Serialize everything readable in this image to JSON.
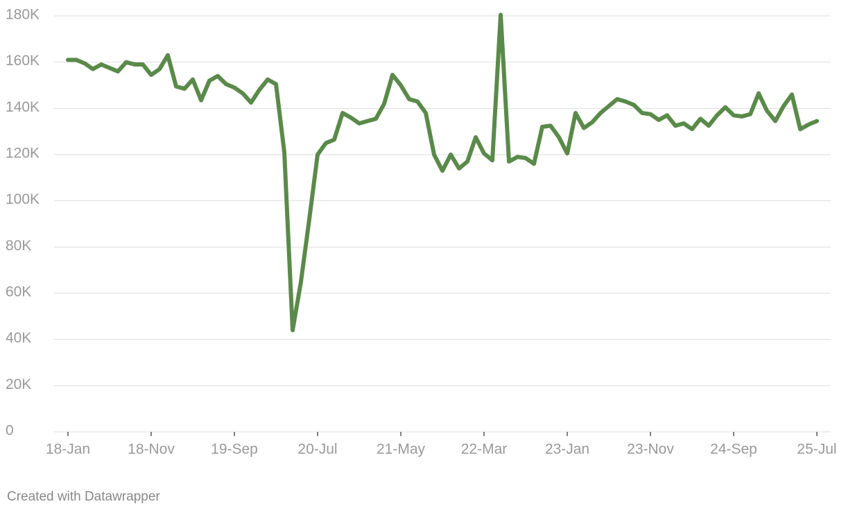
{
  "chart_data": {
    "type": "line",
    "categories": [
      "18-Jan",
      null,
      null,
      null,
      null,
      null,
      null,
      null,
      null,
      null,
      "18-Nov",
      null,
      null,
      null,
      null,
      null,
      null,
      null,
      null,
      null,
      "19-Sep",
      null,
      null,
      null,
      null,
      null,
      null,
      null,
      null,
      null,
      "20-Jul",
      null,
      null,
      null,
      null,
      null,
      null,
      null,
      null,
      null,
      "21-May",
      null,
      null,
      null,
      null,
      null,
      null,
      null,
      null,
      null,
      "22-Mar",
      null,
      null,
      null,
      null,
      null,
      null,
      null,
      null,
      null,
      "23-Jan",
      null,
      null,
      null,
      null,
      null,
      null,
      null,
      null,
      null,
      "23-Nov",
      null,
      null,
      null,
      null,
      null,
      null,
      null,
      null,
      null,
      "24-Sep",
      null,
      null,
      null,
      null,
      null,
      null,
      null,
      null,
      null,
      "25-Jul"
    ],
    "values": [
      161000,
      161000,
      159500,
      157000,
      159000,
      157500,
      156000,
      160000,
      159000,
      159000,
      154500,
      157000,
      163000,
      149500,
      148500,
      152500,
      143500,
      152000,
      154000,
      150500,
      149000,
      146500,
      142500,
      148000,
      152500,
      150500,
      121000,
      44000,
      65000,
      92000,
      120000,
      125000,
      126500,
      138000,
      136000,
      133500,
      134500,
      135500,
      142000,
      154500,
      150000,
      144000,
      143000,
      138000,
      120000,
      113000,
      120000,
      114000,
      117000,
      127500,
      120500,
      117500,
      180500,
      117000,
      119000,
      118500,
      116000,
      132000,
      132500,
      127500,
      120500,
      138000,
      131500,
      134000,
      138000,
      141000,
      144000,
      143000,
      141500,
      138000,
      137500,
      135000,
      137000,
      132500,
      133500,
      131000,
      135500,
      132500,
      137000,
      140500,
      137000,
      136500,
      137500,
      146500,
      139000,
      134500,
      141000,
      146000,
      131000,
      133000,
      134500
    ],
    "color": "#5a8a4a",
    "ylim": [
      0,
      180000
    ],
    "yticks": [
      0,
      {
        "value": 20000,
        "label": "20K"
      },
      {
        "value": 40000,
        "label": "40K"
      },
      {
        "value": 60000,
        "label": "60K"
      },
      {
        "value": 80000,
        "label": "80K"
      },
      {
        "value": 100000,
        "label": "100K"
      },
      {
        "value": 120000,
        "label": "120K"
      },
      {
        "value": 140000,
        "label": "140K"
      },
      {
        "value": 160000,
        "label": "160K"
      },
      {
        "value": 180000,
        "label": "180K"
      }
    ],
    "grid": true,
    "credit": "Created with Datawrapper"
  }
}
